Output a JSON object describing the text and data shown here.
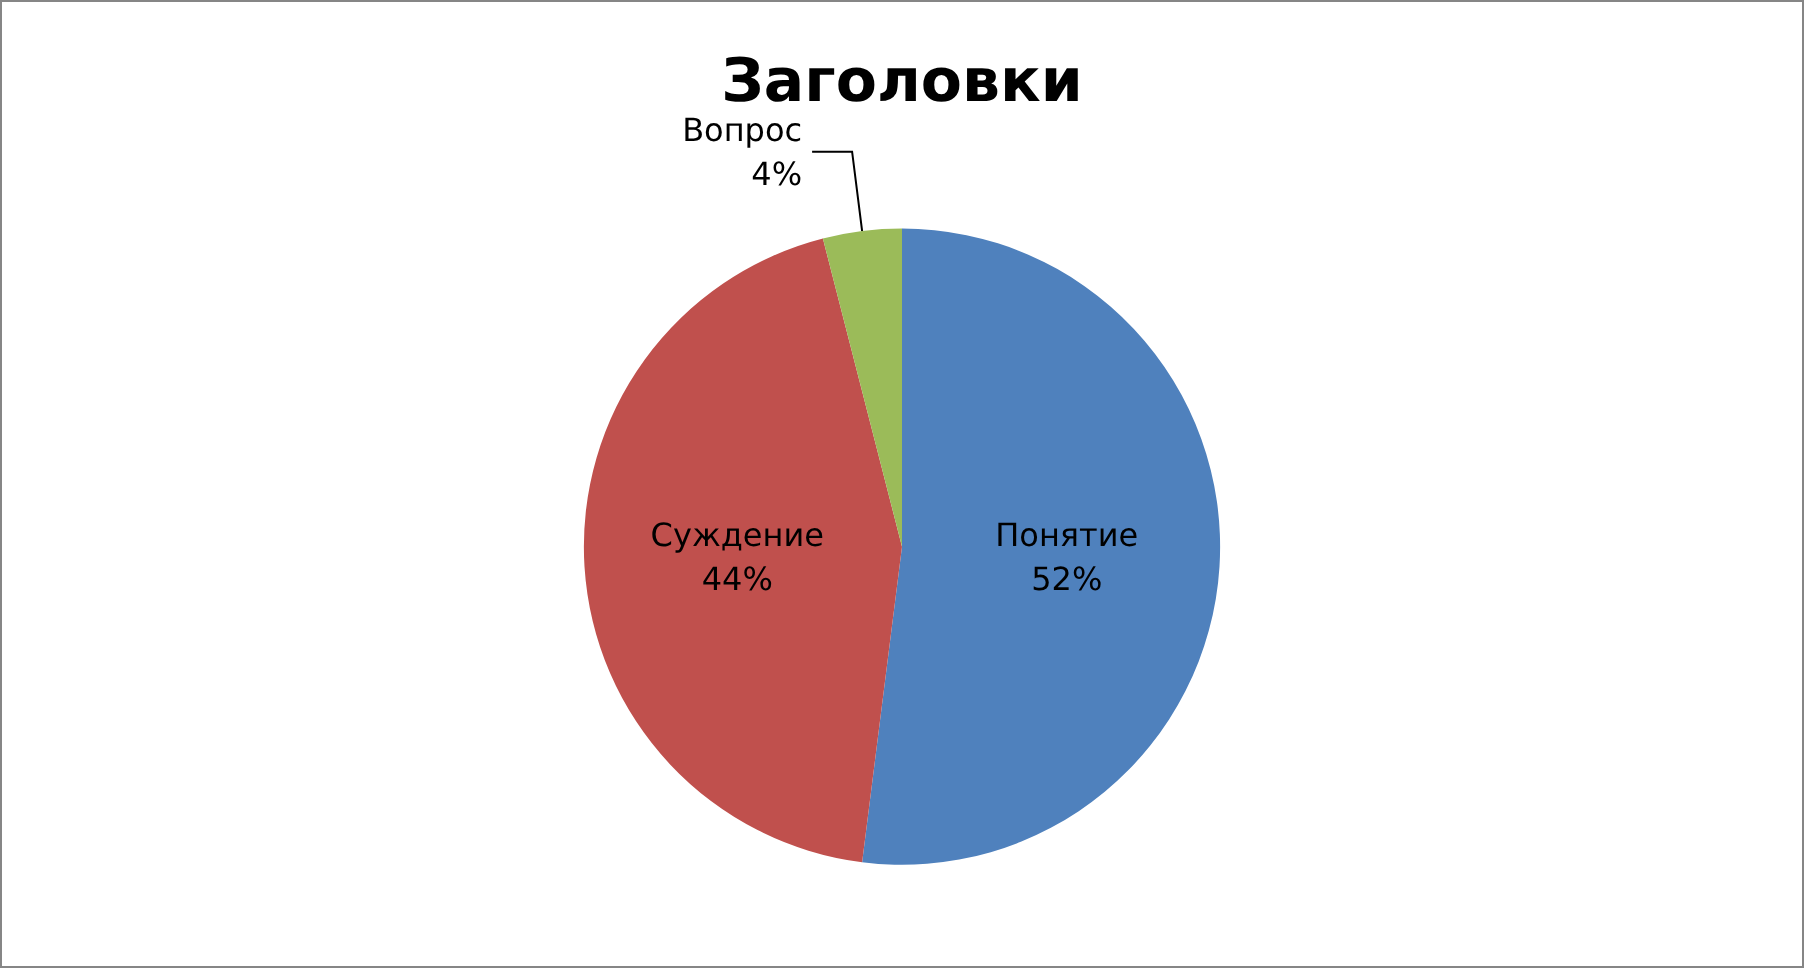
{
  "chart_data": {
    "type": "pie",
    "title": "Заголовки",
    "categories": [
      "Понятие",
      "Суждение",
      "Вопрос"
    ],
    "values": [
      52,
      44,
      4
    ],
    "colors": [
      "#4f81bd",
      "#c0504d",
      "#9bbb59"
    ],
    "value_labels": [
      "52%",
      "44%",
      "4%"
    ],
    "legend": false
  }
}
